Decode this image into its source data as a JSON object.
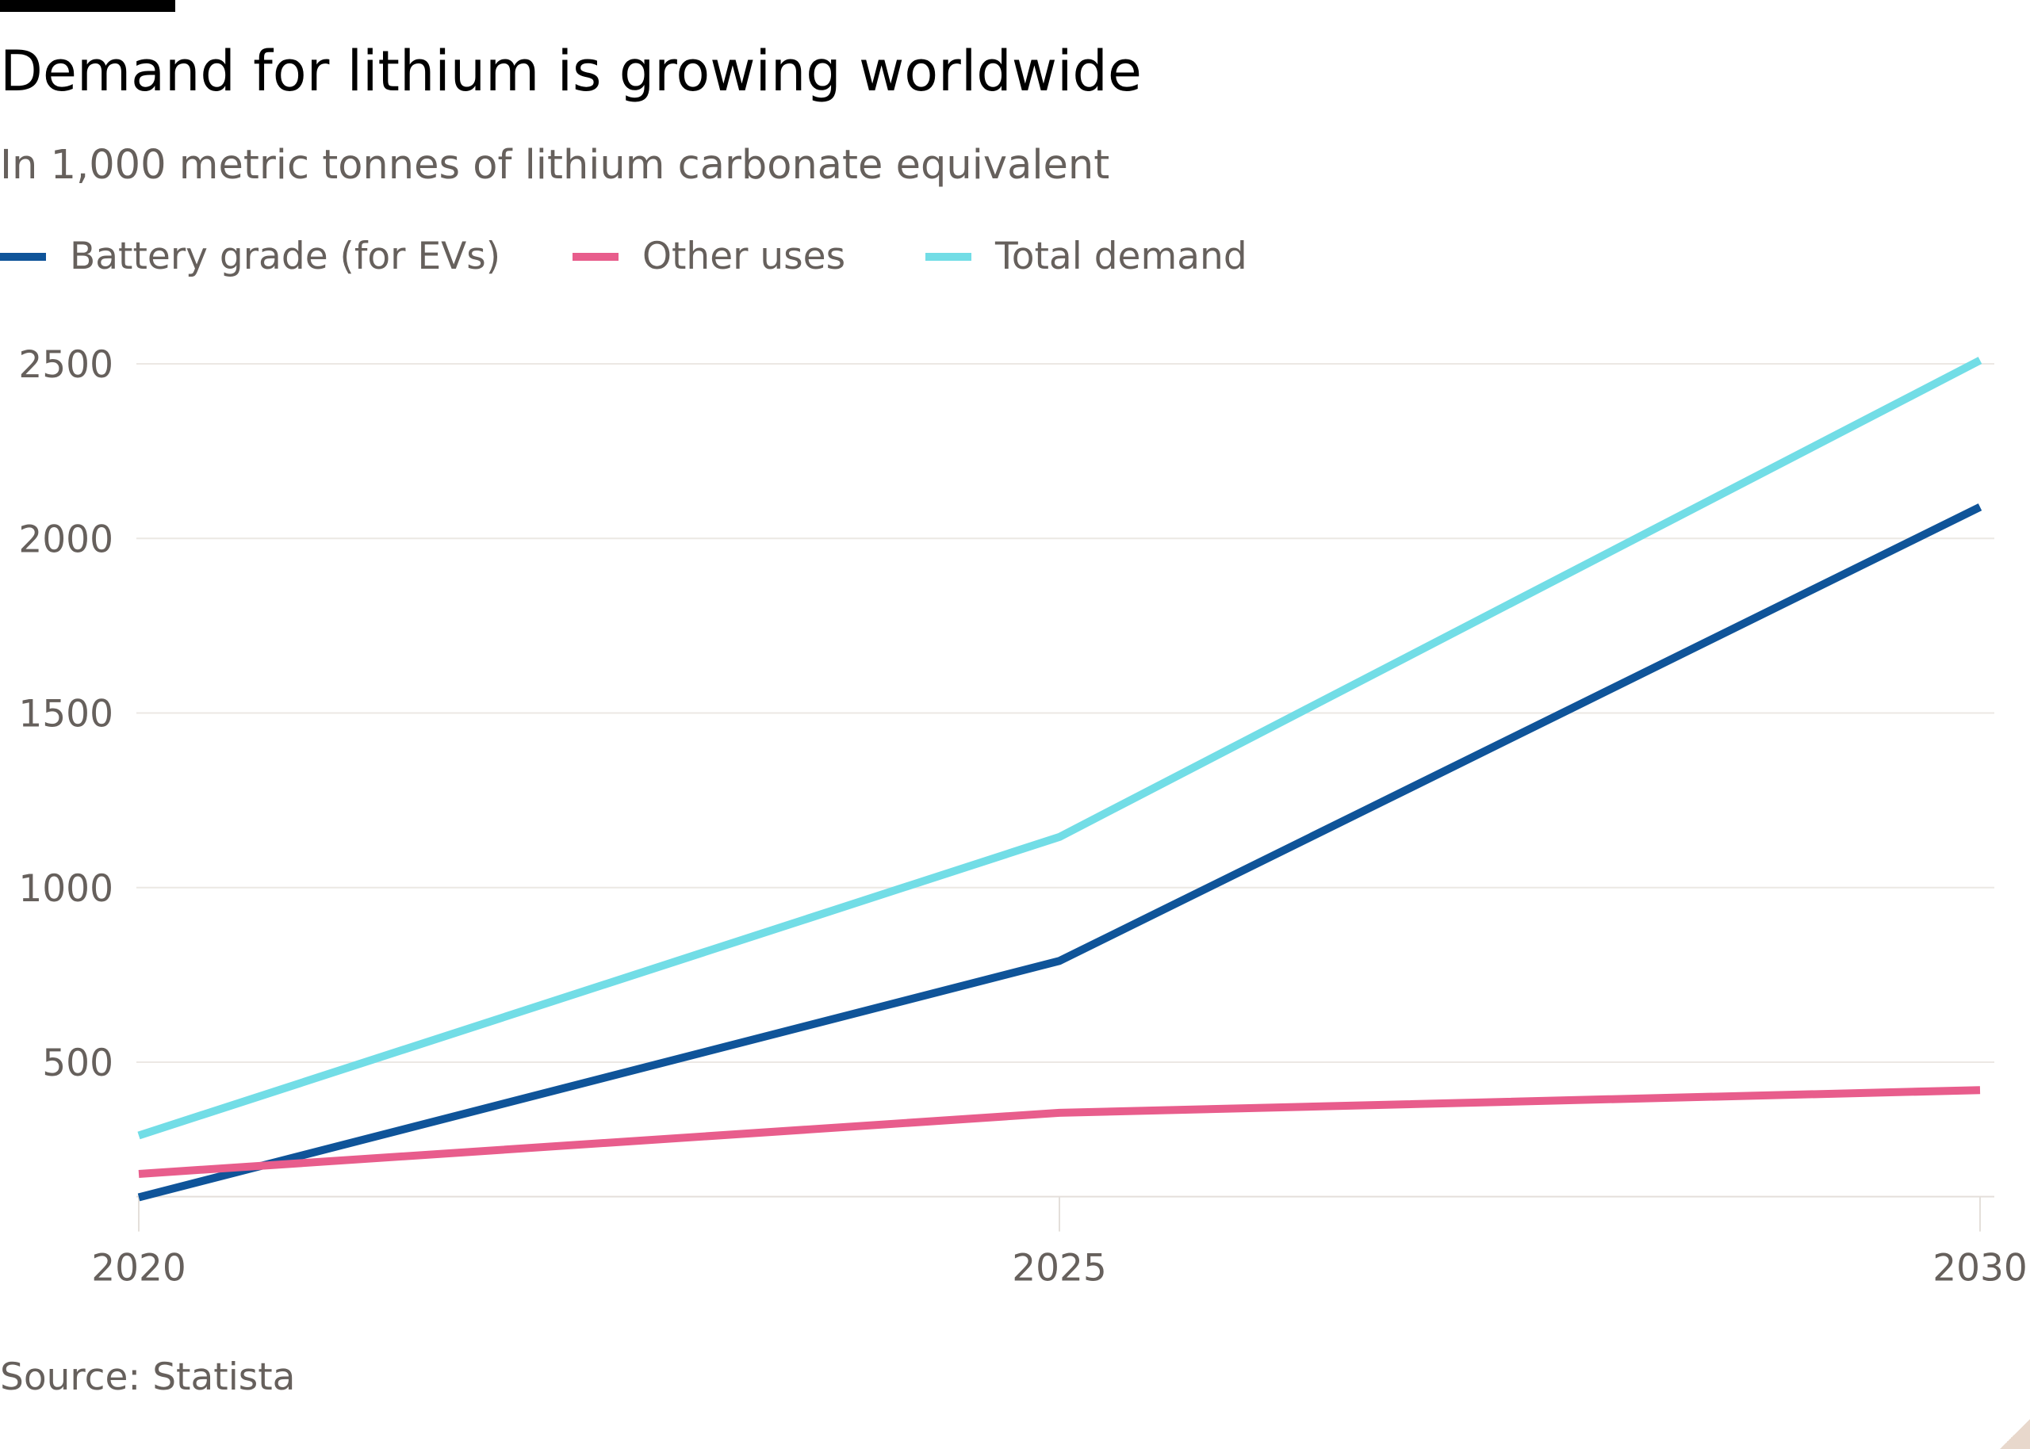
{
  "header": {
    "title": "Demand for lithium is growing worldwide",
    "subtitle": "In 1,000 metric tonnes of lithium carbonate equivalent"
  },
  "legend": [
    {
      "label": "Battery grade (for EVs)",
      "color": "#0f5499"
    },
    {
      "label": "Other uses",
      "color": "#e85d8c"
    },
    {
      "label": "Total demand",
      "color": "#72dde6"
    }
  ],
  "footer": {
    "source": "Source: Statista"
  },
  "chart_data": {
    "type": "line",
    "title": "Demand for lithium is growing worldwide",
    "subtitle": "In 1,000 metric tonnes of lithium carbonate equivalent",
    "xlabel": "",
    "ylabel": "",
    "x": [
      2020,
      2025,
      2030
    ],
    "x_ticks": [
      "2020",
      "2025",
      "2030"
    ],
    "y_ticks": [
      "500",
      "1000",
      "1500",
      "2000",
      "2500"
    ],
    "ylim": [
      115,
      2500
    ],
    "grid": true,
    "legend_position": "top-left",
    "series": [
      {
        "name": "Battery grade (for EVs)",
        "color": "#0f5499",
        "values": [
          113,
          790,
          2090
        ]
      },
      {
        "name": "Other uses",
        "color": "#e85d8c",
        "values": [
          180,
          355,
          420
        ]
      },
      {
        "name": "Total demand",
        "color": "#72dde6",
        "values": [
          290,
          1145,
          2510
        ]
      }
    ]
  }
}
